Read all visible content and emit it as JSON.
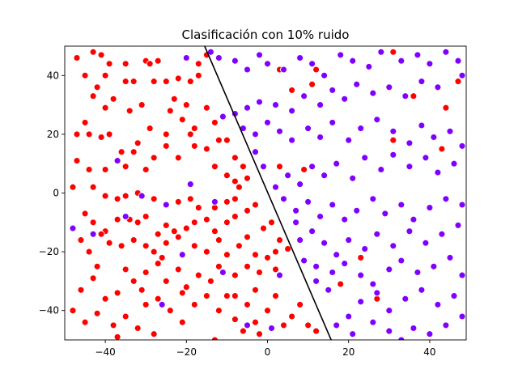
{
  "chart_data": {
    "type": "scatter",
    "title": "Clasificación con 10% ruido",
    "xlabel": "",
    "ylabel": "",
    "xlim": [
      -50,
      49
    ],
    "ylim": [
      -50,
      50
    ],
    "x_ticks": [
      -40,
      -20,
      0,
      20,
      40
    ],
    "x_tick_labels": [
      "−40",
      "−20",
      "0",
      "20",
      "40"
    ],
    "y_ticks": [
      -40,
      -20,
      0,
      20,
      40
    ],
    "y_tick_labels": [
      "−40",
      "−20",
      "0",
      "20",
      "40"
    ],
    "grid": false,
    "legend": "none",
    "colors": {
      "class_a": "#ff0000",
      "class_b": "#8000ff",
      "marker_edge": "#ffffff",
      "boundary": "#000000"
    },
    "decision_boundary": {
      "points": [
        [
          -15.5,
          50
        ],
        [
          15.7,
          -50
        ]
      ]
    },
    "series": [
      {
        "class": "class_a",
        "points": [
          [
            -47,
            46
          ],
          [
            -43,
            48
          ],
          [
            -41,
            47
          ],
          [
            -45,
            40
          ],
          [
            -40,
            40
          ],
          [
            -43,
            33
          ],
          [
            -40,
            29
          ],
          [
            -39,
            44
          ],
          [
            -35,
            44
          ],
          [
            -35,
            38
          ],
          [
            -33,
            38
          ],
          [
            -30,
            45
          ],
          [
            -29,
            44
          ],
          [
            -27,
            45
          ],
          [
            -25,
            38
          ],
          [
            -22,
            39
          ],
          [
            -19,
            38
          ],
          [
            -17,
            40
          ],
          [
            -17,
            44
          ],
          [
            -15,
            47
          ],
          [
            -20,
            30
          ],
          [
            -23,
            32
          ],
          [
            -24,
            28
          ],
          [
            -28,
            38
          ],
          [
            -31,
            30
          ],
          [
            -34,
            28
          ],
          [
            -38,
            32
          ],
          [
            -42,
            36
          ],
          [
            -45,
            24
          ],
          [
            -44,
            20
          ],
          [
            -47,
            20
          ],
          [
            -41,
            19
          ],
          [
            -39,
            20
          ],
          [
            -36,
            14
          ],
          [
            -33,
            14
          ],
          [
            -32,
            17
          ],
          [
            -29,
            22
          ],
          [
            -25,
            20
          ],
          [
            -21,
            25
          ],
          [
            -18,
            22
          ],
          [
            -15,
            29
          ],
          [
            -13,
            24
          ],
          [
            -12,
            18
          ],
          [
            -10,
            18
          ],
          [
            -8,
            12
          ],
          [
            -6,
            9
          ],
          [
            -5,
            5
          ],
          [
            -8,
            4
          ],
          [
            -10,
            6
          ],
          [
            -13,
            9
          ],
          [
            -15,
            15
          ],
          [
            -18,
            16
          ],
          [
            -19,
            20
          ],
          [
            -22,
            12
          ],
          [
            -25,
            16
          ],
          [
            -28,
            12
          ],
          [
            -30,
            8
          ],
          [
            -35,
            9
          ],
          [
            -40,
            8
          ],
          [
            -44,
            8
          ],
          [
            -47,
            11
          ],
          [
            -48,
            2
          ],
          [
            -43,
            2
          ],
          [
            -40,
            -1
          ],
          [
            -37,
            -2
          ],
          [
            -35,
            -1
          ],
          [
            -32,
            0
          ],
          [
            -28,
            -2
          ],
          [
            -25,
            -4
          ],
          [
            -22,
            -3
          ],
          [
            -19,
            -2
          ],
          [
            -17,
            -5
          ],
          [
            -13,
            -5
          ],
          [
            -10,
            -3
          ],
          [
            -8,
            -2
          ],
          [
            -7,
            2
          ],
          [
            -5,
            -6
          ],
          [
            -3,
            -4
          ],
          [
            -8,
            -8
          ],
          [
            -10,
            -10
          ],
          [
            -13,
            -13
          ],
          [
            -15,
            -9
          ],
          [
            -18,
            -10
          ],
          [
            -20,
            -12
          ],
          [
            -23,
            -13
          ],
          [
            -25,
            -11
          ],
          [
            -27,
            -14
          ],
          [
            -30,
            -8
          ],
          [
            -32,
            -10
          ],
          [
            -34,
            -9
          ],
          [
            -37,
            -9
          ],
          [
            -40,
            -13
          ],
          [
            -43,
            -10
          ],
          [
            -45,
            -7
          ],
          [
            -46,
            -16
          ],
          [
            -44,
            -20
          ],
          [
            -41,
            -14
          ],
          [
            -39,
            -17
          ],
          [
            -36,
            -18
          ],
          [
            -33,
            -16
          ],
          [
            -30,
            -18
          ],
          [
            -28,
            -20
          ],
          [
            -25,
            -17
          ],
          [
            -22,
            -15
          ],
          [
            -18,
            -18
          ],
          [
            -15,
            -20
          ],
          [
            -12,
            -16
          ],
          [
            -10,
            -21
          ],
          [
            -7,
            -18
          ],
          [
            -5,
            -15
          ],
          [
            -3,
            -21
          ],
          [
            -1,
            -12
          ],
          [
            1,
            -10
          ],
          [
            3,
            -16
          ],
          [
            2,
            -20
          ],
          [
            -2,
            -27
          ],
          [
            -5,
            -25
          ],
          [
            -8,
            -28
          ],
          [
            -12,
            -25
          ],
          [
            -14,
            -30
          ],
          [
            -17,
            -28
          ],
          [
            -20,
            -32
          ],
          [
            -22,
            -26
          ],
          [
            -25,
            -30
          ],
          [
            -27,
            -24
          ],
          [
            -30,
            -27
          ],
          [
            -33,
            -30
          ],
          [
            -35,
            -26
          ],
          [
            -37,
            -34
          ],
          [
            -40,
            -36
          ],
          [
            -43,
            -29
          ],
          [
            -46,
            -33
          ],
          [
            -48,
            -40
          ],
          [
            -45,
            -44
          ],
          [
            -42,
            -41
          ],
          [
            -38,
            -45
          ],
          [
            -35,
            -42
          ],
          [
            -32,
            -46
          ],
          [
            -30,
            -38
          ],
          [
            -27,
            -36
          ],
          [
            -24,
            -40
          ],
          [
            -21,
            -44
          ],
          [
            -18,
            -38
          ],
          [
            -15,
            -35
          ],
          [
            -12,
            -40
          ],
          [
            -10,
            -35
          ],
          [
            -8,
            -43
          ],
          [
            -5,
            -38
          ],
          [
            -3,
            -33
          ],
          [
            0,
            -40
          ],
          [
            2,
            -35
          ],
          [
            4,
            -45
          ],
          [
            6,
            -42
          ],
          [
            8,
            -38
          ],
          [
            10,
            -45
          ],
          [
            12,
            -47
          ],
          [
            -2,
            -48
          ],
          [
            -6,
            -47
          ],
          [
            -13,
            -50
          ],
          [
            -28,
            -48
          ],
          [
            -37,
            -49
          ],
          [
            -21,
            -34
          ],
          [
            -26,
            -22
          ],
          [
            -31,
            -33
          ],
          [
            2,
            -26
          ],
          [
            0,
            -22
          ],
          [
            5,
            -19
          ],
          [
            -42,
            -25
          ],
          [
            3,
            9
          ],
          [
            9,
            8
          ],
          [
            11,
            37
          ],
          [
            6,
            35
          ],
          [
            3,
            42
          ],
          [
            18,
            -31
          ],
          [
            23,
            -22
          ],
          [
            27,
            -36
          ],
          [
            31,
            18
          ],
          [
            36,
            33
          ],
          [
            43,
            15
          ],
          [
            44,
            29
          ],
          [
            47,
            38
          ],
          [
            31,
            48
          ],
          [
            12,
            42
          ],
          [
            -8,
            -35
          ],
          [
            -3,
            -44
          ]
        ]
      },
      {
        "class": "class_b",
        "points": [
          [
            -14,
            48
          ],
          [
            -12,
            46
          ],
          [
            -8,
            45
          ],
          [
            -5,
            42
          ],
          [
            -2,
            47
          ],
          [
            0,
            44
          ],
          [
            4,
            42
          ],
          [
            8,
            46
          ],
          [
            11,
            44
          ],
          [
            14,
            40
          ],
          [
            18,
            47
          ],
          [
            21,
            45
          ],
          [
            25,
            43
          ],
          [
            28,
            48
          ],
          [
            33,
            45
          ],
          [
            37,
            47
          ],
          [
            40,
            44
          ],
          [
            44,
            48
          ],
          [
            47,
            45
          ],
          [
            48,
            40
          ],
          [
            42,
            36
          ],
          [
            38,
            38
          ],
          [
            34,
            33
          ],
          [
            30,
            36
          ],
          [
            26,
            34
          ],
          [
            22,
            37
          ],
          [
            19,
            32
          ],
          [
            16,
            35
          ],
          [
            13,
            30
          ],
          [
            9,
            33
          ],
          [
            6,
            28
          ],
          [
            2,
            30
          ],
          [
            -2,
            31
          ],
          [
            -5,
            29
          ],
          [
            -8,
            27
          ],
          [
            -11,
            26
          ],
          [
            -6,
            22
          ],
          [
            -3,
            20
          ],
          [
            0,
            24
          ],
          [
            3,
            21
          ],
          [
            6,
            18
          ],
          [
            10,
            22
          ],
          [
            13,
            19
          ],
          [
            16,
            24
          ],
          [
            20,
            18
          ],
          [
            23,
            22
          ],
          [
            27,
            25
          ],
          [
            31,
            21
          ],
          [
            35,
            17
          ],
          [
            38,
            23
          ],
          [
            41,
            19
          ],
          [
            45,
            21
          ],
          [
            48,
            16
          ],
          [
            46,
            10
          ],
          [
            42,
            7
          ],
          [
            39,
            12
          ],
          [
            35,
            9
          ],
          [
            31,
            13
          ],
          [
            28,
            8
          ],
          [
            24,
            12
          ],
          [
            21,
            5
          ],
          [
            17,
            10
          ],
          [
            14,
            6
          ],
          [
            11,
            9
          ],
          [
            8,
            3
          ],
          [
            5,
            6
          ],
          [
            2,
            2
          ],
          [
            -1,
            9
          ],
          [
            4,
            -2
          ],
          [
            7,
            -6
          ],
          [
            10,
            -3
          ],
          [
            13,
            -8
          ],
          [
            16,
            -4
          ],
          [
            19,
            -9
          ],
          [
            22,
            -6
          ],
          [
            26,
            -2
          ],
          [
            29,
            -7
          ],
          [
            33,
            -4
          ],
          [
            36,
            -9
          ],
          [
            40,
            -5
          ],
          [
            44,
            -2
          ],
          [
            48,
            -4
          ],
          [
            47,
            -11
          ],
          [
            43,
            -14
          ],
          [
            39,
            -17
          ],
          [
            35,
            -13
          ],
          [
            31,
            -18
          ],
          [
            27,
            -14
          ],
          [
            24,
            -19
          ],
          [
            20,
            -16
          ],
          [
            17,
            -21
          ],
          [
            14,
            -17
          ],
          [
            11,
            -13
          ],
          [
            8,
            -16
          ],
          [
            9,
            -23
          ],
          [
            12,
            -25
          ],
          [
            16,
            -27
          ],
          [
            19,
            -24
          ],
          [
            23,
            -28
          ],
          [
            26,
            -31
          ],
          [
            30,
            -26
          ],
          [
            33,
            -23
          ],
          [
            37,
            -27
          ],
          [
            41,
            -25
          ],
          [
            45,
            -22
          ],
          [
            48,
            -28
          ],
          [
            46,
            -35
          ],
          [
            42,
            -38
          ],
          [
            38,
            -33
          ],
          [
            34,
            -36
          ],
          [
            30,
            -40
          ],
          [
            27,
            -34
          ],
          [
            23,
            -37
          ],
          [
            20,
            -42
          ],
          [
            17,
            -45
          ],
          [
            21,
            -48
          ],
          [
            26,
            -44
          ],
          [
            30,
            -47
          ],
          [
            33,
            -50
          ],
          [
            36,
            -46
          ],
          [
            40,
            -48
          ],
          [
            44,
            -45
          ],
          [
            48,
            -42
          ],
          [
            12,
            -30
          ],
          [
            15,
            -33
          ],
          [
            -13,
            -3
          ],
          [
            -19,
            3
          ],
          [
            -25,
            -4
          ],
          [
            -35,
            -8
          ],
          [
            -43,
            -14
          ],
          [
            -48,
            -12
          ],
          [
            -37,
            11
          ],
          [
            -20,
            46
          ],
          [
            -11,
            -27
          ],
          [
            -5,
            -45
          ],
          [
            -26,
            -38
          ],
          [
            -31,
            -1
          ],
          [
            -21,
            -21
          ],
          [
            7,
            -10
          ],
          [
            3,
            -28
          ],
          [
            1,
            -46
          ],
          [
            -3,
            14
          ]
        ]
      }
    ]
  }
}
